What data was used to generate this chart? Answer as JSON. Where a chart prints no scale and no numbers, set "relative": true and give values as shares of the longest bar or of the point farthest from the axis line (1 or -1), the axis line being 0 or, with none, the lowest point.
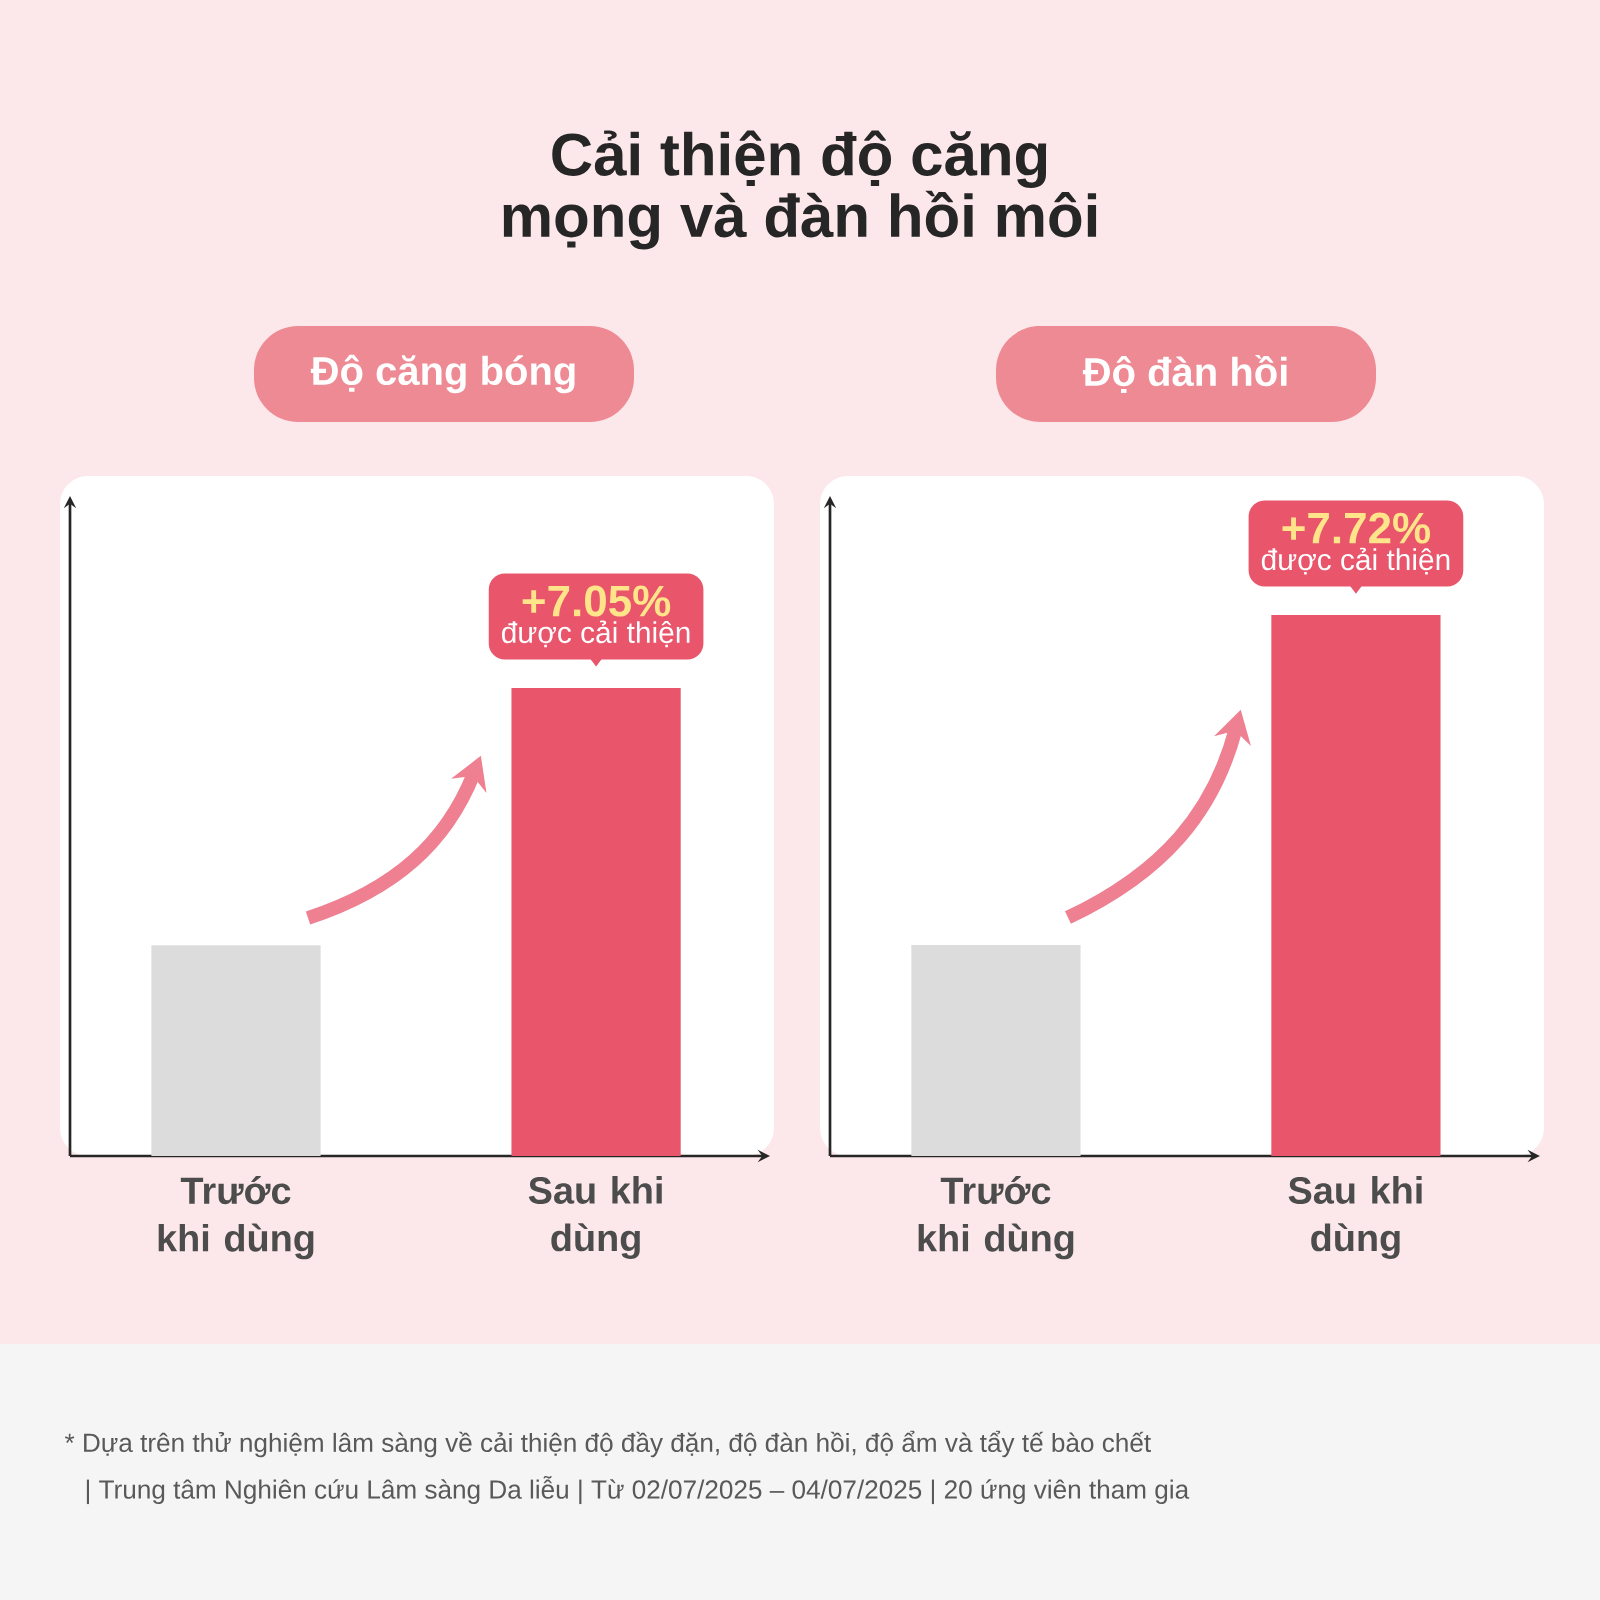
{
  "chart_data": [
    {
      "type": "bar",
      "title": "Cải thiện độ căng mọng và đàn hồi môi",
      "subtitle": "Độ căng bóng",
      "categories": [
        "Trước khi dùng",
        "Sau khi dùng"
      ],
      "values": [
        0.45,
        1
      ],
      "colors": [
        "#dcdcdc",
        "#e9566c"
      ],
      "relative": true,
      "annotations": [
        {
          "text": "+7.05%",
          "x": "Sau khi dùng",
          "y": 1
        },
        {
          "text": "được cải thiện",
          "x": "Sau khi dùng",
          "y": 1
        }
      ]
    },
    {
      "type": "bar",
      "subtitle": "Độ đàn hồi",
      "categories": [
        "Trước khi dùng",
        "Sau khi dùng"
      ],
      "values": [
        0.39,
        1
      ],
      "colors": [
        "#dcdcdc",
        "#e9566c"
      ],
      "relative": true,
      "annotations": [
        {
          "text": "+7.72%",
          "x": "Sau khi dùng",
          "y": 1
        },
        {
          "text": "được cải thiện",
          "x": "Sau khi dùng",
          "y": 1
        },
        "* Dựa trên thử nghiệm lâm sàng về cải thiện độ đầy đặn, độ đàn hồi, độ ẩm và tẩy tế bào chết",
        "| Trung tâm Nghiên cứu Lâm sàng Da liễu | Từ 02/07/2025 – 04/07/2025 | 20 ứng viên tham gia"
      ]
    }
  ]
}
